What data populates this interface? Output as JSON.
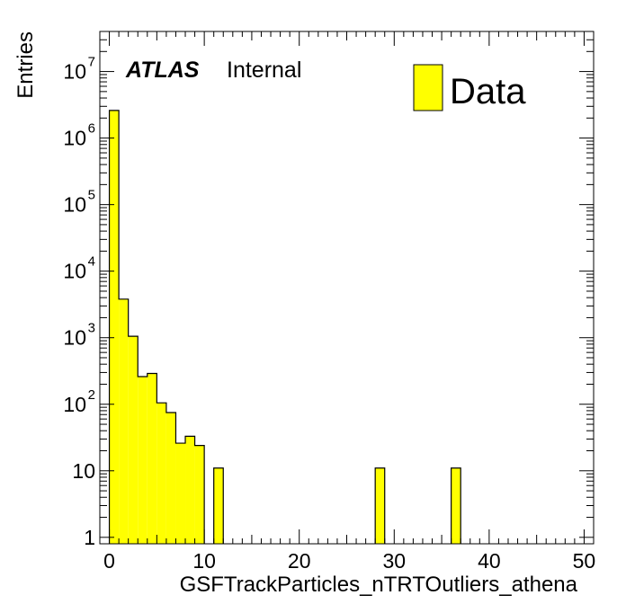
{
  "chart_data": {
    "type": "bar",
    "title": "",
    "xlabel": "GSFTrackParticles_nTRTOutliers_athena",
    "ylabel": "Entries",
    "xlim": [
      -1,
      51
    ],
    "ylim": [
      0.8,
      40000000
    ],
    "yscale": "log",
    "bin_width": 1,
    "x_tick_labels": [
      "0",
      "10",
      "20",
      "30",
      "40",
      "50"
    ],
    "y_tick_labels": [
      {
        "base": "1",
        "exp": ""
      },
      {
        "base": "10",
        "exp": ""
      },
      {
        "base": "10",
        "exp": "2"
      },
      {
        "base": "10",
        "exp": "3"
      },
      {
        "base": "10",
        "exp": "4"
      },
      {
        "base": "10",
        "exp": "5"
      },
      {
        "base": "10",
        "exp": "6"
      },
      {
        "base": "10",
        "exp": "7"
      }
    ],
    "series": [
      {
        "name": "Data",
        "color": "#ffff00",
        "x": [
          0,
          1,
          2,
          3,
          4,
          5,
          6,
          7,
          8,
          9,
          11,
          28,
          36
        ],
        "values": [
          2600000,
          3800,
          1050,
          260,
          290,
          105,
          75,
          26,
          33,
          24,
          11,
          11,
          11
        ]
      }
    ],
    "legend": {
      "position": "top-right",
      "entries": [
        "Data"
      ]
    },
    "grid": false
  },
  "label": {
    "experiment": "ATLAS",
    "status": "Internal"
  }
}
